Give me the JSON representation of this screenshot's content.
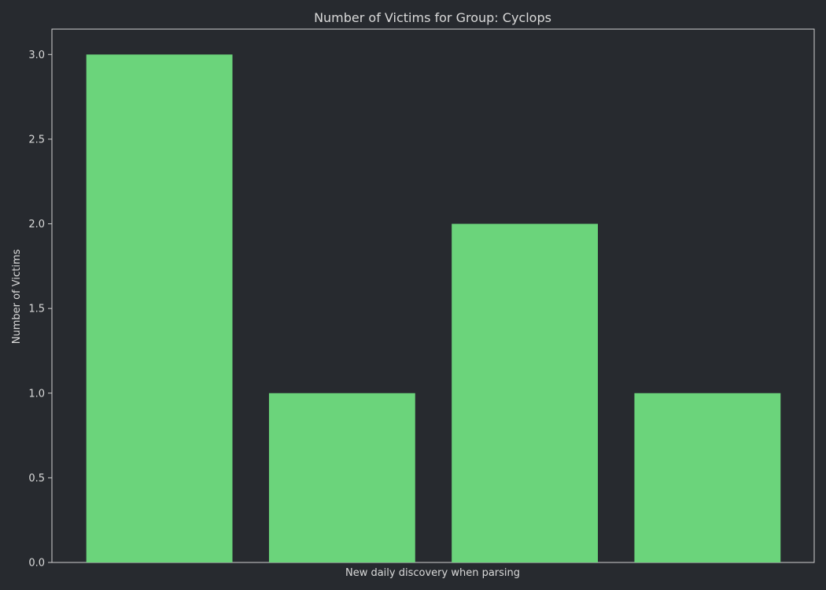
{
  "colors": {
    "background": "#272a2f",
    "bar": "#6bd47b",
    "axis": "#d0d0d0",
    "text": "#d9d9d9"
  },
  "chart_data": {
    "type": "bar",
    "title": "Number of Victims for Group: Cyclops",
    "xlabel": "New daily discovery when parsing",
    "ylabel": "Number of Victims",
    "categories": [
      "",
      "",
      "",
      ""
    ],
    "values": [
      3,
      1,
      2,
      1
    ],
    "ylim": [
      0,
      3.15
    ],
    "yticks": [
      "0.0",
      "0.5",
      "1.0",
      "1.5",
      "2.0",
      "2.5",
      "3.0"
    ],
    "grid": false,
    "legend": "none"
  }
}
